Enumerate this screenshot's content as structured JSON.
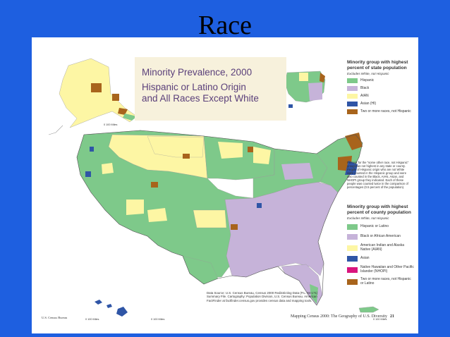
{
  "slide": {
    "title": "Race"
  },
  "map": {
    "title": "Minority Prevalence, 2000",
    "subtitle_line1": "Hispanic or Latino Origin",
    "subtitle_line2": "and All Races Except White"
  },
  "colors": {
    "hispanic": "#7ec98a",
    "black": "#c6b3d9",
    "aian": "#fdf6a4",
    "asian": "#2f55a6",
    "nhopi": "#d9157e",
    "multi": "#a8641c",
    "ocean": "#ffffff",
    "title_box": "#f7f1dc"
  },
  "legend_state": {
    "title": "Minority group with highest percent of state population",
    "note": "Excludes White, not Hispanic",
    "items": [
      {
        "label": "Hispanic",
        "color": "#7ec98a"
      },
      {
        "label": "Black",
        "color": "#c6b3d9"
      },
      {
        "label": "AIAN",
        "color": "#fdf6a4"
      },
      {
        "label": "Asian (HI)",
        "color": "#2f55a6"
      },
      {
        "label": "Two or more races, not Hispanic",
        "color": "#a8641c"
      }
    ]
  },
  "note_text": "Percent for the \"some other race, not Hispanic\" group was not highest in any state or county. People of Hispanic origin who are not White were counted in the Hispanic group and were also counted in the Black, AIAN, Asian, and NHOPI group they indicated. Each of these people was counted twice in the comparison of percentages (0.5 percent of the population).",
  "legend_county": {
    "title": "Minority group with highest percent of county population",
    "note": "Excludes White, not Hispanic",
    "items": [
      {
        "label": "Hispanic or Latino",
        "color": "#7ec98a"
      },
      {
        "label": "Black or African American",
        "color": "#c6b3d9"
      },
      {
        "label": "American Indian and Alaska Native (AIAN)",
        "color": "#fdf6a4"
      },
      {
        "label": "Asian",
        "color": "#2f55a6"
      },
      {
        "label": "Native Hawaiian and Other Pacific Islander (NHOPI)",
        "color": "#d9157e"
      },
      {
        "label": "Two or more races, not Hispanic or Latino",
        "color": "#a8641c"
      }
    ]
  },
  "source": "Data Source: U.S. Census Bureau, Census 2000 Redistricting Data (P.L. 94-171) Summary File. Cartography: Population Division, U.S. Census Bureau. American FactFinder at factfinder.census.gov provides census data and mapping tools.",
  "scales": {
    "alaska": "0    100 Miles",
    "hawaii": "0    100 Miles",
    "contiguous": "0    100 Miles",
    "puerto_rico": "0    100 Miles"
  },
  "footer": {
    "left": "U.S. Census Bureau",
    "right": "Mapping Census 2000: The Geography of U.S. Diversity",
    "page": "21"
  }
}
